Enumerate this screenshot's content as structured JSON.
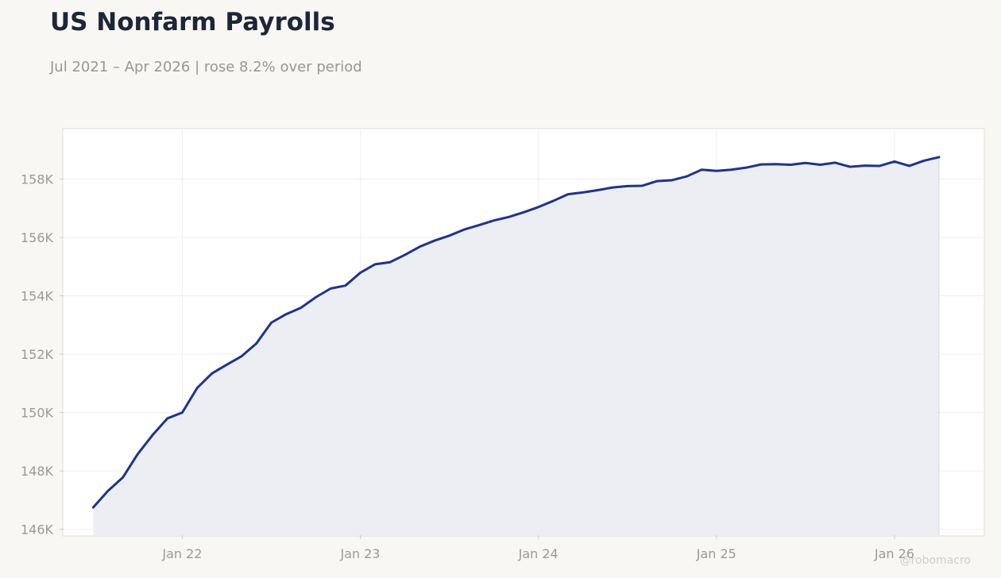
{
  "header": {
    "title": "US Nonfarm Payrolls",
    "subtitle": "Jul 2021 – Apr 2026 | rose 8.2% over period"
  },
  "watermark": "@robomacro",
  "colors": {
    "line": "#1f3585",
    "area": "#eceef4",
    "grid": "#efefef",
    "frame": "#dedcd5",
    "background": "#f8f7f4"
  },
  "chart_data": {
    "type": "area",
    "title": "US Nonfarm Payrolls",
    "subtitle": "Jul 2021 – Apr 2026 | rose 8.2% over period",
    "xlabel": "",
    "ylabel": "",
    "units": "thousands",
    "x_range": [
      "2021-05",
      "2026-07"
    ],
    "ylim": [
      145800,
      159700
    ],
    "grid": true,
    "legend": "none",
    "x_ticks": [
      {
        "date": "2022-01",
        "label": "Jan 22"
      },
      {
        "date": "2023-01",
        "label": "Jan 23"
      },
      {
        "date": "2024-01",
        "label": "Jan 24"
      },
      {
        "date": "2025-01",
        "label": "Jan 25"
      },
      {
        "date": "2026-01",
        "label": "Jan 26"
      }
    ],
    "y_ticks": [
      {
        "value": 146000,
        "label": "146K"
      },
      {
        "value": 148000,
        "label": "148K"
      },
      {
        "value": 150000,
        "label": "150K"
      },
      {
        "value": 152000,
        "label": "152K"
      },
      {
        "value": 154000,
        "label": "154K"
      },
      {
        "value": 156000,
        "label": "156K"
      },
      {
        "value": 158000,
        "label": "158K"
      }
    ],
    "series": [
      {
        "x": [
          "2021-07",
          "2021-08",
          "2021-09",
          "2021-10",
          "2021-11",
          "2021-12",
          "2022-01",
          "2022-02",
          "2022-03",
          "2022-04",
          "2022-05",
          "2022-06",
          "2022-07",
          "2022-08",
          "2022-09",
          "2022-10",
          "2022-11",
          "2022-12",
          "2023-01",
          "2023-02",
          "2023-03",
          "2023-04",
          "2023-05",
          "2023-06",
          "2023-07",
          "2023-08",
          "2023-09",
          "2023-10",
          "2023-11",
          "2023-12",
          "2024-01",
          "2024-02",
          "2024-03",
          "2024-04",
          "2024-05",
          "2024-06",
          "2024-07",
          "2024-08",
          "2024-09",
          "2024-10",
          "2024-11",
          "2024-12",
          "2025-01",
          "2025-02",
          "2025-03",
          "2025-04",
          "2025-05",
          "2025-06",
          "2025-07",
          "2025-08",
          "2025-09",
          "2025-10",
          "2025-11",
          "2025-12",
          "2026-01",
          "2026-02",
          "2026-03",
          "2026-04"
        ],
        "values": [
          146750,
          147320,
          147780,
          148580,
          149230,
          149800,
          150000,
          150840,
          151340,
          151640,
          151930,
          152370,
          153080,
          153370,
          153590,
          153950,
          154250,
          154350,
          154790,
          155080,
          155150,
          155400,
          155680,
          155890,
          156060,
          156270,
          156420,
          156580,
          156700,
          156860,
          157040,
          157250,
          157480,
          157540,
          157620,
          157710,
          157760,
          157770,
          157930,
          157960,
          158090,
          158320,
          158280,
          158320,
          158390,
          158500,
          158510,
          158490,
          158550,
          158490,
          158560,
          158420,
          158460,
          158450,
          158600,
          158450,
          158630,
          158750
        ]
      }
    ]
  }
}
